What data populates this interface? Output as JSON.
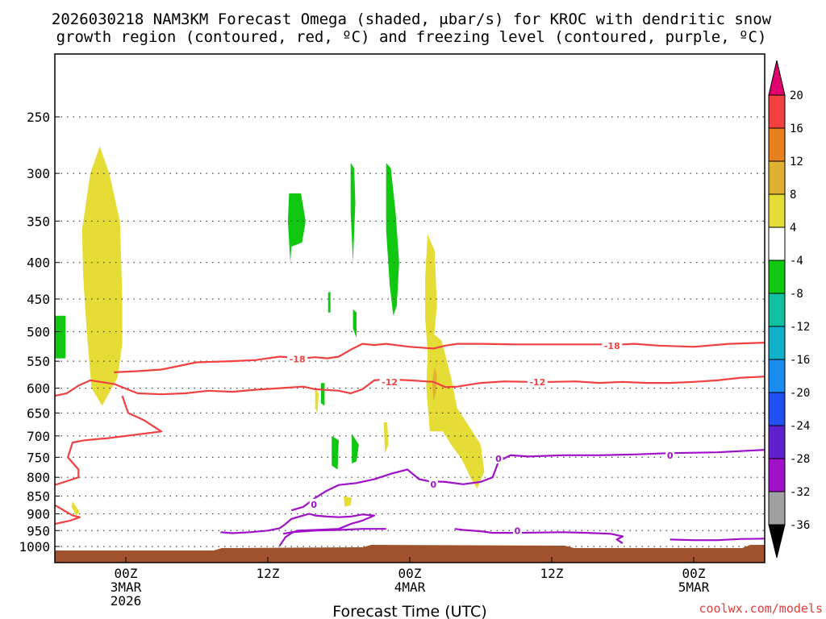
{
  "title": {
    "line1": "2026030218 NAM3KM Forecast Omega (shaded, μbar/s) for KROC with dendritic snow",
    "line2": "growth region (contoured, red, ºC) and freezing level (contoured, purple, ºC)"
  },
  "footer": {
    "credit": "coolwx.com/models"
  },
  "chart_data": {
    "type": "heatmap",
    "title": "2026030218 NAM3KM Forecast Omega (shaded, μbar/s) for KROC with dendritic snow growth region (contoured, red, ºC) and freezing level (contoured, purple, ºC)",
    "xlabel": "Forecast Time (UTC)",
    "ylabel": "",
    "y_scale": "log",
    "ylim": [
      1000,
      200
    ],
    "y_reversed": true,
    "grid": true,
    "xlim_hours": [
      18,
      78
    ],
    "y_ticks": [
      250,
      300,
      350,
      400,
      450,
      500,
      550,
      600,
      650,
      700,
      750,
      800,
      850,
      900,
      950,
      1000
    ],
    "x_ticks": [
      {
        "hour": 24,
        "label": [
          "00Z",
          "3MAR",
          "2026"
        ]
      },
      {
        "hour": 36,
        "label": [
          "12Z"
        ]
      },
      {
        "hour": 48,
        "label": [
          "00Z",
          "4MAR"
        ]
      },
      {
        "hour": 60,
        "label": [
          "12Z"
        ]
      },
      {
        "hour": 72,
        "label": [
          "00Z",
          "5MAR"
        ]
      }
    ],
    "colorbar": {
      "levels": [
        "20",
        "16",
        "12",
        "8",
        "4",
        "-4",
        "-8",
        "-12",
        "-16",
        "-20",
        "-24",
        "-28",
        "-32",
        "-36"
      ],
      "colors": [
        "#e0006e",
        "#f04040",
        "#e88020",
        "#e0b030",
        "#e6dc36",
        "#ffffff",
        "#10c810",
        "#10c0a0",
        "#10b0c8",
        "#1a8cf0",
        "#2050f0",
        "#6020d0",
        "#a010c8",
        "#a0a0a0",
        "#000000"
      ]
    },
    "colors": {
      "dgz": "#f04040",
      "freezing": "#a010c8",
      "ground": "#a0522d",
      "rising": "#10c810",
      "sinking": "#e6dc36",
      "sinking_strong": "#e0b030",
      "credit": "#e03c3c"
    },
    "omega_shading": [
      {
        "value": "rising",
        "points": [
          [
            18.0,
            475
          ],
          [
            18.9,
            475
          ],
          [
            18.9,
            545
          ],
          [
            18.0,
            545
          ]
        ]
      },
      {
        "value": "sinking",
        "points": [
          [
            20.3,
            360
          ],
          [
            21.0,
            300
          ],
          [
            21.8,
            275
          ],
          [
            22.6,
            300
          ],
          [
            23.5,
            350
          ],
          [
            23.7,
            450
          ],
          [
            23.7,
            520
          ],
          [
            23.3,
            580
          ],
          [
            22.0,
            635
          ],
          [
            21.1,
            600
          ],
          [
            20.7,
            500
          ],
          [
            20.4,
            420
          ]
        ]
      },
      {
        "value": "rising",
        "points": [
          [
            37.8,
            320
          ],
          [
            38.8,
            320
          ],
          [
            39.2,
            350
          ],
          [
            38.9,
            375
          ],
          [
            38.0,
            380
          ],
          [
            37.9,
            400
          ],
          [
            37.7,
            350
          ]
        ]
      },
      {
        "value": "rising",
        "points": [
          [
            43.0,
            290
          ],
          [
            43.3,
            295
          ],
          [
            43.4,
            330
          ],
          [
            43.2,
            400
          ],
          [
            43.0,
            340
          ]
        ]
      },
      {
        "value": "rising",
        "points": [
          [
            46.0,
            290
          ],
          [
            46.4,
            295
          ],
          [
            46.8,
            340
          ],
          [
            47.1,
            400
          ],
          [
            46.9,
            460
          ],
          [
            46.6,
            475
          ],
          [
            46.3,
            430
          ],
          [
            46.0,
            360
          ]
        ]
      },
      {
        "value": "sinking",
        "points": [
          [
            49.5,
            365
          ],
          [
            50.1,
            385
          ],
          [
            50.3,
            460
          ],
          [
            50.0,
            520
          ],
          [
            49.6,
            560
          ],
          [
            49.3,
            480
          ],
          [
            49.3,
            420
          ]
        ]
      },
      {
        "value": "sinking",
        "points": [
          [
            49.8,
            500
          ],
          [
            50.7,
            515
          ],
          [
            51.5,
            580
          ],
          [
            52.0,
            640
          ],
          [
            52.8,
            670
          ],
          [
            54.0,
            720
          ],
          [
            54.3,
            785
          ],
          [
            53.7,
            830
          ],
          [
            53.2,
            805
          ],
          [
            52.4,
            755
          ],
          [
            51.5,
            720
          ],
          [
            50.8,
            690
          ],
          [
            49.7,
            690
          ],
          [
            49.4,
            600
          ],
          [
            49.5,
            540
          ]
        ]
      },
      {
        "value": "sinking_strong",
        "points": [
          [
            50.1,
            560
          ],
          [
            50.3,
            575
          ],
          [
            50.2,
            610
          ],
          [
            50.0,
            625
          ],
          [
            49.9,
            590
          ]
        ]
      },
      {
        "value": "rising",
        "points": [
          [
            41.1,
            440
          ],
          [
            41.3,
            440
          ],
          [
            41.3,
            470
          ],
          [
            41.1,
            470
          ]
        ]
      },
      {
        "value": "rising",
        "points": [
          [
            43.2,
            465
          ],
          [
            43.5,
            470
          ],
          [
            43.5,
            510
          ],
          [
            43.2,
            495
          ]
        ]
      },
      {
        "value": "rising",
        "points": [
          [
            41.4,
            700
          ],
          [
            42.0,
            710
          ],
          [
            41.9,
            780
          ],
          [
            41.4,
            770
          ]
        ]
      },
      {
        "value": "rising",
        "points": [
          [
            43.1,
            695
          ],
          [
            43.7,
            720
          ],
          [
            43.5,
            760
          ],
          [
            43.1,
            765
          ]
        ]
      },
      {
        "value": "rising",
        "points": [
          [
            40.5,
            590
          ],
          [
            40.8,
            590
          ],
          [
            40.8,
            635
          ],
          [
            40.5,
            630
          ]
        ]
      },
      {
        "value": "sinking",
        "points": [
          [
            40.0,
            600
          ],
          [
            40.3,
            610
          ],
          [
            40.2,
            650
          ],
          [
            40.0,
            640
          ]
        ]
      },
      {
        "value": "sinking",
        "points": [
          [
            45.8,
            670
          ],
          [
            46.1,
            670
          ],
          [
            46.2,
            720
          ],
          [
            45.9,
            740
          ]
        ]
      },
      {
        "value": "sinking",
        "points": [
          [
            19.5,
            865
          ],
          [
            20.1,
            895
          ],
          [
            19.8,
            905
          ],
          [
            19.4,
            880
          ]
        ]
      },
      {
        "value": "sinking",
        "points": [
          [
            42.4,
            850
          ],
          [
            43.1,
            855
          ],
          [
            43.0,
            875
          ],
          [
            42.5,
            880
          ]
        ]
      }
    ],
    "series": [
      {
        "name": "-18",
        "color": "#f04040",
        "label_at": [
          [
            38.5,
            546
          ],
          [
            65.1,
            523
          ]
        ],
        "points": [
          [
            23,
            570
          ],
          [
            25,
            568
          ],
          [
            27,
            565
          ],
          [
            30,
            552
          ],
          [
            33,
            550
          ],
          [
            35,
            548
          ],
          [
            37,
            542
          ],
          [
            39,
            545
          ],
          [
            40,
            543
          ],
          [
            41,
            545
          ],
          [
            42,
            542
          ],
          [
            43,
            530
          ],
          [
            44,
            520
          ],
          [
            45,
            522
          ],
          [
            46,
            520
          ],
          [
            48,
            525
          ],
          [
            50,
            528
          ],
          [
            51,
            523
          ],
          [
            52,
            520
          ],
          [
            54,
            520
          ],
          [
            57,
            521
          ],
          [
            60,
            521
          ],
          [
            63,
            521
          ],
          [
            66,
            521
          ],
          [
            67,
            520
          ],
          [
            69,
            523
          ],
          [
            72,
            525
          ],
          [
            75,
            520
          ],
          [
            78,
            518
          ]
        ]
      },
      {
        "name": "-12",
        "color": "#f04040",
        "label_at": [
          [
            46.3,
            588
          ],
          [
            58.8,
            588
          ]
        ],
        "points": [
          [
            18,
            615
          ],
          [
            19,
            610
          ],
          [
            20,
            595
          ],
          [
            21,
            585
          ],
          [
            23,
            592
          ],
          [
            25,
            610
          ],
          [
            27,
            612
          ],
          [
            29,
            610
          ],
          [
            31,
            605
          ],
          [
            33,
            607
          ],
          [
            35,
            603
          ],
          [
            37,
            600
          ],
          [
            39,
            597
          ],
          [
            40,
            602
          ],
          [
            42,
            605
          ],
          [
            43,
            610
          ],
          [
            44,
            602
          ],
          [
            45,
            585
          ],
          [
            46,
            583
          ],
          [
            48,
            585
          ],
          [
            50,
            588
          ],
          [
            51,
            598
          ],
          [
            52,
            597
          ],
          [
            54,
            590
          ],
          [
            56,
            587
          ],
          [
            58,
            588
          ],
          [
            60,
            588
          ],
          [
            62,
            587
          ],
          [
            64,
            590
          ],
          [
            66,
            588
          ],
          [
            68,
            590
          ],
          [
            70,
            590
          ],
          [
            72,
            588
          ],
          [
            74,
            585
          ],
          [
            76,
            580
          ],
          [
            78,
            578
          ]
        ]
      },
      {
        "name": "-12",
        "color": "#f04040",
        "label_at": [],
        "points": [
          [
            23.7,
            615
          ],
          [
            24.2,
            650
          ],
          [
            25.5,
            665
          ],
          [
            27.0,
            690
          ],
          [
            22.5,
            705
          ],
          [
            20.5,
            710
          ],
          [
            19.5,
            715
          ],
          [
            19.1,
            750
          ],
          [
            20.0,
            780
          ],
          [
            20.0,
            800
          ],
          [
            19.0,
            810
          ],
          [
            18.0,
            820
          ]
        ]
      },
      {
        "name": "-12",
        "color": "#f04040",
        "label_at": [],
        "points": [
          [
            18.0,
            875
          ],
          [
            19.5,
            905
          ],
          [
            20.1,
            910
          ],
          [
            19.3,
            920
          ],
          [
            18.0,
            930
          ]
        ]
      },
      {
        "name": "0",
        "color": "#a010c8",
        "label_at": [
          [
            55.5,
            753
          ],
          [
            70.0,
            745
          ],
          [
            39.9,
            873
          ],
          [
            50.0,
            818
          ],
          [
            57.1,
            950
          ]
        ],
        "points": [
          [
            38.0,
            890
          ],
          [
            39.0,
            880
          ],
          [
            40.0,
            855
          ],
          [
            41.0,
            835
          ],
          [
            42.0,
            820
          ],
          [
            43.5,
            815
          ],
          [
            45.0,
            805
          ],
          [
            46.5,
            790
          ],
          [
            47.8,
            780
          ],
          [
            48.2,
            790
          ],
          [
            48.8,
            805
          ],
          [
            49.6,
            810
          ],
          [
            51.0,
            812
          ],
          [
            52.5,
            818
          ],
          [
            54.0,
            812
          ],
          [
            55.0,
            800
          ],
          [
            55.5,
            760
          ],
          [
            56.5,
            745
          ],
          [
            58.0,
            748
          ],
          [
            61.0,
            745
          ],
          [
            64.0,
            745
          ],
          [
            67.0,
            743
          ],
          [
            70.0,
            740
          ],
          [
            74.0,
            738
          ],
          [
            78.0,
            732
          ]
        ]
      },
      {
        "name": "0",
        "color": "#a010c8",
        "label_at": [],
        "points": [
          [
            32.0,
            955
          ],
          [
            33.0,
            958
          ],
          [
            34.5,
            955
          ],
          [
            36.0,
            950
          ],
          [
            37.0,
            943
          ],
          [
            37.5,
            930
          ],
          [
            38.0,
            915
          ],
          [
            39.0,
            905
          ],
          [
            39.5,
            900
          ],
          [
            40.0,
            905
          ],
          [
            41.0,
            908
          ],
          [
            42.0,
            910
          ],
          [
            43.0,
            908
          ],
          [
            44.0,
            902
          ],
          [
            45.0,
            905
          ],
          [
            44.0,
            920
          ],
          [
            43.0,
            930
          ],
          [
            42.0,
            945
          ],
          [
            40.0,
            948
          ],
          [
            38.5,
            950
          ],
          [
            38.0,
            958
          ],
          [
            37.5,
            970
          ],
          [
            37.0,
            998
          ]
        ]
      },
      {
        "name": "0",
        "color": "#a010c8",
        "label_at": [],
        "points": [
          [
            37.3,
            960
          ],
          [
            38.0,
            955
          ],
          [
            40.0,
            950
          ],
          [
            42.0,
            948
          ],
          [
            44.0,
            945
          ],
          [
            46.0,
            945
          ]
        ]
      },
      {
        "name": "0",
        "color": "#a010c8",
        "label_at": [],
        "points": [
          [
            51.8,
            945
          ],
          [
            52.5,
            948
          ],
          [
            54.0,
            952
          ],
          [
            55.0,
            957
          ],
          [
            57.0,
            957
          ],
          [
            59.0,
            956
          ],
          [
            61.0,
            955
          ],
          [
            63.0,
            957
          ],
          [
            65.0,
            960
          ],
          [
            66.0,
            968
          ],
          [
            65.5,
            978
          ],
          [
            66.0,
            990
          ]
        ]
      },
      {
        "name": "0",
        "color": "#a010c8",
        "label_at": [],
        "points": [
          [
            70.0,
            978
          ],
          [
            72.0,
            980
          ],
          [
            74.0,
            980
          ],
          [
            76.0,
            976
          ],
          [
            78.0,
            975
          ]
        ]
      }
    ]
  }
}
